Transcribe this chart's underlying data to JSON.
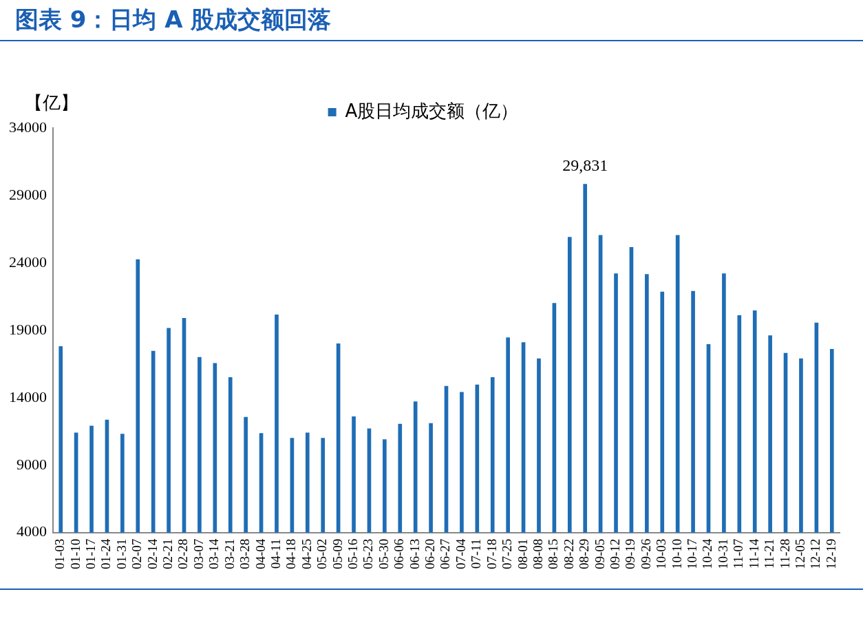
{
  "chart_data": {
    "type": "bar",
    "title": "图表 9：日均 A 股成交额回落",
    "ylabel": "【亿】",
    "categories": [
      "01-03",
      "01-10",
      "01-17",
      "01-24",
      "01-31",
      "02-07",
      "02-14",
      "02-21",
      "02-28",
      "03-07",
      "03-14",
      "03-21",
      "03-28",
      "04-04",
      "04-11",
      "04-18",
      "04-25",
      "05-02",
      "05-09",
      "05-16",
      "05-23",
      "05-30",
      "06-06",
      "06-13",
      "06-20",
      "06-27",
      "07-04",
      "07-11",
      "07-18",
      "07-25",
      "08-01",
      "08-08",
      "08-15",
      "08-22",
      "08-29",
      "09-05",
      "09-12",
      "09-19",
      "09-26",
      "10-03",
      "10-10",
      "10-17",
      "10-24",
      "10-31",
      "11-07",
      "11-14",
      "11-21",
      "11-28",
      "12-05",
      "12-12",
      "12-19"
    ],
    "series": [
      {
        "name": "A股日均成交额（亿）",
        "color": "#1f6db5",
        "values": [
          17800,
          11400,
          11900,
          12350,
          11300,
          24250,
          17450,
          19150,
          19900,
          17000,
          16550,
          15500,
          12550,
          11350,
          20150,
          11000,
          11400,
          11000,
          18000,
          12600,
          11700,
          10900,
          12050,
          13700,
          12100,
          14850,
          14400,
          14950,
          15500,
          18450,
          18100,
          16900,
          21000,
          25900,
          29831,
          26050,
          23200,
          25150,
          23150,
          21850,
          26050,
          21900,
          17950,
          23200,
          20100,
          20450,
          18600,
          17300,
          16900,
          19550,
          17600
        ],
        "value_labels": [
          null,
          null,
          null,
          null,
          null,
          null,
          null,
          null,
          null,
          null,
          null,
          null,
          null,
          null,
          null,
          null,
          null,
          null,
          null,
          null,
          null,
          null,
          null,
          null,
          null,
          null,
          null,
          null,
          null,
          null,
          null,
          null,
          null,
          null,
          "29,831",
          null,
          null,
          null,
          null,
          null,
          null,
          null,
          null,
          null,
          null,
          null,
          null,
          null,
          null,
          null,
          null
        ]
      }
    ],
    "ylim": [
      4000,
      34000
    ],
    "yticks": [
      4000,
      9000,
      14000,
      19000,
      24000,
      29000,
      34000
    ],
    "grid": false,
    "legend": "top"
  }
}
